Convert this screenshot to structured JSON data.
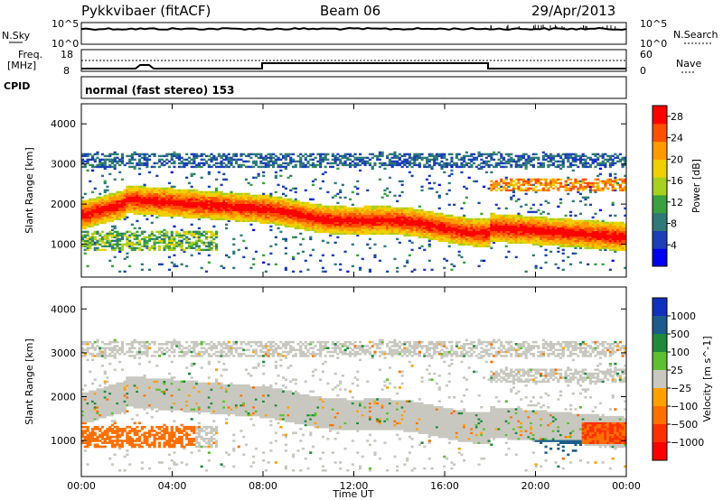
{
  "header": {
    "station": "Pykkvibaer (fitACF)",
    "beam": "Beam 06",
    "date": "29/Apr/2013"
  },
  "noise_panel": {
    "left_label": "N.Sky",
    "right_label": "N.Search",
    "left_ticks": [
      "10^5",
      "10^0"
    ],
    "right_ticks": [
      "10^5",
      "10^0"
    ]
  },
  "freq_panel": {
    "left_label_1": "Freq.",
    "left_label_2": "[MHz]",
    "left_ticks": [
      "18",
      "8"
    ],
    "right_label": "Nave",
    "right_ticks": [
      "60",
      "0"
    ]
  },
  "cpid_panel": {
    "label": "CPID",
    "mode_text": "normal (fast stereo) 153"
  },
  "colors": {
    "power_scale": [
      "#0000ee",
      "#1c3fb8",
      "#2f7a78",
      "#3aa040",
      "#a8d020",
      "#f0d000",
      "#ff9a00",
      "#ff5000",
      "#ff0000"
    ],
    "velocity_scale": [
      "#1030c0",
      "#1c5c8c",
      "#1f8a3c",
      "#5cc030",
      "#c8c8c0",
      "#ffa000",
      "#ff7000",
      "#ff3000",
      "#ff0000"
    ]
  },
  "chart_data": [
    {
      "type": "heatmap",
      "title": "Power",
      "ylabel": "Slant Range [km]",
      "ylim": [
        180,
        4500
      ],
      "xlim": [
        0,
        24
      ],
      "x_ticks": [
        "00:00",
        "04:00",
        "08:00",
        "12:00",
        "16:00",
        "20:00",
        "00:00"
      ],
      "y_ticks": [
        1000,
        2000,
        3000,
        4000
      ],
      "colorbar_label": "Power [dB]",
      "colorbar_ticks": [
        4,
        8,
        12,
        16,
        20,
        24,
        28
      ],
      "colorbar_range": [
        0,
        30
      ]
    },
    {
      "type": "heatmap",
      "title": "Velocity",
      "ylabel": "Slant Range [km]",
      "ylim": [
        180,
        4500
      ],
      "xlim": [
        0,
        24
      ],
      "x_ticks": [
        "00:00",
        "04:00",
        "08:00",
        "12:00",
        "16:00",
        "20:00",
        "00:00"
      ],
      "y_ticks": [
        1000,
        2000,
        3000,
        4000
      ],
      "xlabel": "Time UT",
      "colorbar_label": "Velocity [m s^-1]",
      "colorbar_ticks": [
        "1000",
        "500",
        "100",
        "25",
        "−25",
        "−100",
        "−500",
        "−1000"
      ]
    }
  ]
}
